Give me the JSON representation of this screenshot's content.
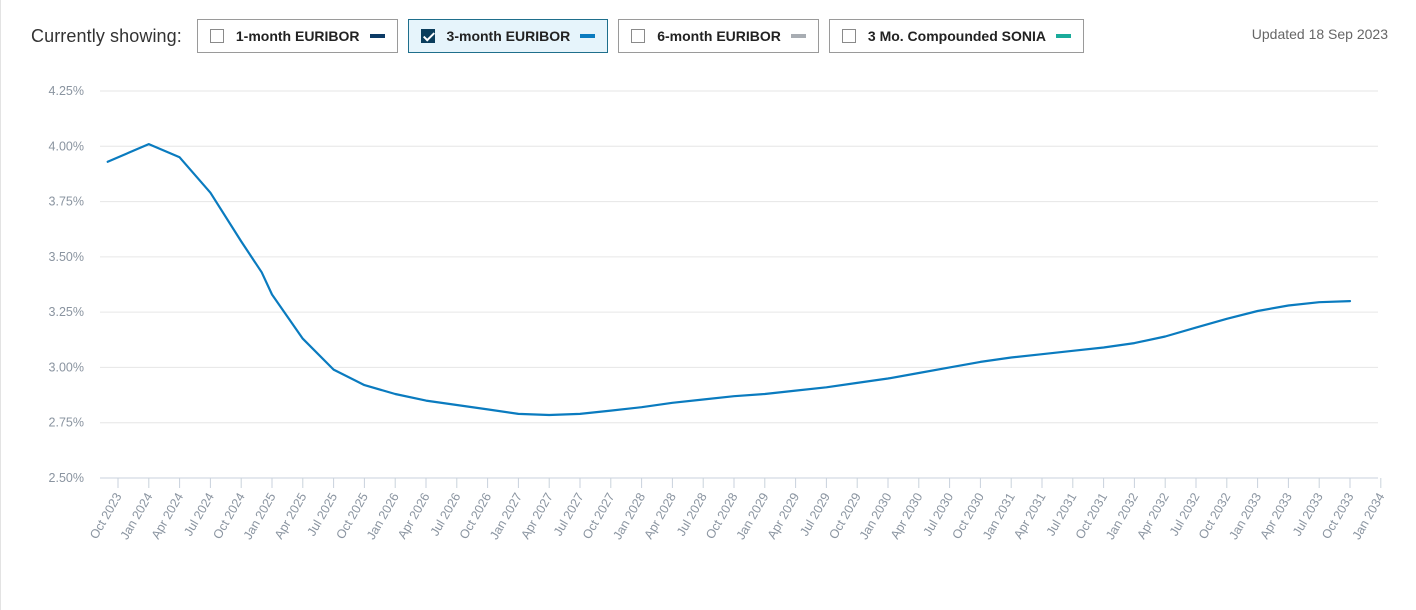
{
  "header": {
    "showing_label": "Currently showing:",
    "updated": "Updated 18 Sep 2023"
  },
  "toggles": [
    {
      "label": "1-month EURIBOR",
      "checked": false,
      "color": "#0d3b66"
    },
    {
      "label": "3-month EURIBOR",
      "checked": true,
      "color": "#0a7bbf"
    },
    {
      "label": "6-month EURIBOR",
      "checked": false,
      "color": "#a8adb3"
    },
    {
      "label": "3 Mo. Compounded SONIA",
      "checked": false,
      "color": "#1aab9b"
    }
  ],
  "chart_data": {
    "type": "line",
    "ylim": [
      2.5,
      4.25
    ],
    "yticks": [
      "2.50%",
      "2.75%",
      "3.00%",
      "3.25%",
      "3.50%",
      "3.75%",
      "4.00%",
      "4.25%"
    ],
    "xticks": [
      "Oct 2023",
      "Jan 2024",
      "Apr 2024",
      "Jul 2024",
      "Oct 2024",
      "Jan 2025",
      "Apr 2025",
      "Jul 2025",
      "Oct 2025",
      "Jan 2026",
      "Apr 2026",
      "Jul 2026",
      "Oct 2026",
      "Jan 2027",
      "Apr 2027",
      "Jul 2027",
      "Oct 2027",
      "Jan 2028",
      "Apr 2028",
      "Jul 2028",
      "Oct 2028",
      "Jan 2029",
      "Apr 2029",
      "Jul 2029",
      "Oct 2029",
      "Jan 2030",
      "Apr 2030",
      "Jul 2030",
      "Oct 2030",
      "Jan 2031",
      "Apr 2031",
      "Jul 2031",
      "Oct 2031",
      "Jan 2032",
      "Apr 2032",
      "Jul 2032",
      "Oct 2032",
      "Jan 2033",
      "Apr 2033",
      "Jul 2033",
      "Oct 2033",
      "Jan 2034"
    ],
    "x_start": "Oct 2023",
    "grid": true,
    "series": [
      {
        "color": "#0a7bbf",
        "points": [
          [
            "Sep 2023",
            3.93
          ],
          [
            "Dec 2023",
            3.99
          ],
          [
            "Jan 2024",
            4.01
          ],
          [
            "Apr 2024",
            3.95
          ],
          [
            "Jul 2024",
            3.79
          ],
          [
            "Oct 2024",
            3.57
          ],
          [
            "Dec 2024",
            3.43
          ],
          [
            "Jan 2025",
            3.33
          ],
          [
            "Apr 2025",
            3.13
          ],
          [
            "Jul 2025",
            2.99
          ],
          [
            "Oct 2025",
            2.92
          ],
          [
            "Jan 2026",
            2.88
          ],
          [
            "Apr 2026",
            2.85
          ],
          [
            "Jul 2026",
            2.83
          ],
          [
            "Oct 2026",
            2.81
          ],
          [
            "Jan 2027",
            2.79
          ],
          [
            "Apr 2027",
            2.785
          ],
          [
            "Jul 2027",
            2.79
          ],
          [
            "Oct 2027",
            2.805
          ],
          [
            "Jan 2028",
            2.82
          ],
          [
            "Apr 2028",
            2.84
          ],
          [
            "Jul 2028",
            2.855
          ],
          [
            "Oct 2028",
            2.87
          ],
          [
            "Jan 2029",
            2.88
          ],
          [
            "Apr 2029",
            2.895
          ],
          [
            "Jul 2029",
            2.91
          ],
          [
            "Oct 2029",
            2.93
          ],
          [
            "Jan 2030",
            2.95
          ],
          [
            "Apr 2030",
            2.975
          ],
          [
            "Jul 2030",
            3.0
          ],
          [
            "Oct 2030",
            3.025
          ],
          [
            "Jan 2031",
            3.045
          ],
          [
            "Apr 2031",
            3.06
          ],
          [
            "Jul 2031",
            3.075
          ],
          [
            "Oct 2031",
            3.09
          ],
          [
            "Jan 2032",
            3.11
          ],
          [
            "Apr 2032",
            3.14
          ],
          [
            "Jul 2032",
            3.18
          ],
          [
            "Oct 2032",
            3.22
          ],
          [
            "Jan 2033",
            3.255
          ],
          [
            "Apr 2033",
            3.28
          ],
          [
            "Jul 2033",
            3.295
          ],
          [
            "Oct 2033",
            3.3
          ]
        ]
      }
    ]
  }
}
